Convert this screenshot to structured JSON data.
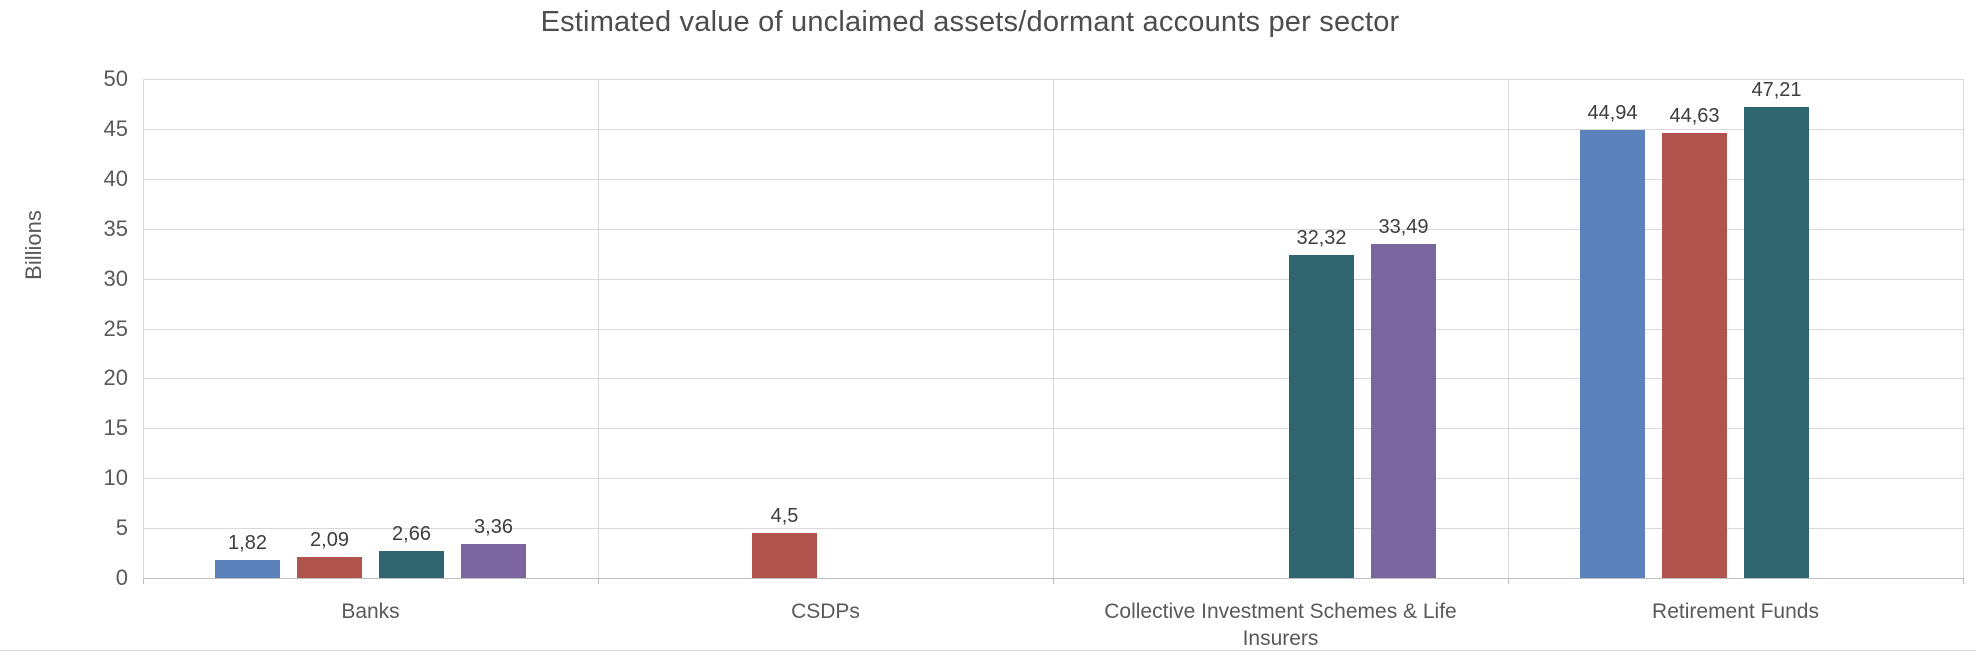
{
  "chart_data": {
    "type": "bar",
    "title": "Estimated value of unclaimed assets/dormant accounts per sector",
    "xlabel": "",
    "ylabel": "Billions",
    "ylim": [
      0,
      50
    ],
    "yticks": [
      0,
      5,
      10,
      15,
      20,
      25,
      30,
      35,
      40,
      45,
      50
    ],
    "grid": true,
    "legend_position": "none",
    "decimal_separator": ",",
    "categories": [
      "Banks",
      "CSDPs",
      "Collective Investment Schemes & Life Insurers",
      "Retirement Funds"
    ],
    "series": [
      {
        "name": "blue",
        "color": "#5B82BA",
        "values": [
          1.82,
          null,
          null,
          44.94
        ],
        "labels": [
          "1,82",
          null,
          null,
          "44,94"
        ]
      },
      {
        "name": "red",
        "color": "#B1544E",
        "values": [
          2.09,
          4.5,
          null,
          44.63
        ],
        "labels": [
          "2,09",
          "4,5",
          null,
          "44,63"
        ]
      },
      {
        "name": "teal",
        "color": "#2E656E",
        "values": [
          2.66,
          null,
          32.32,
          47.21
        ],
        "labels": [
          "2,66",
          null,
          "32,32",
          "47,21"
        ]
      },
      {
        "name": "purple",
        "color": "#7A659F",
        "values": [
          3.36,
          null,
          33.49,
          null
        ],
        "labels": [
          "3,36",
          null,
          "33,49",
          null
        ]
      }
    ],
    "colors": {
      "gridline": "#d9d9d9",
      "axis_line": "#bfbfbf",
      "title_text": "#4d4d4d",
      "tick_text": "#595959",
      "data_label_text": "#3d3d3d"
    }
  }
}
